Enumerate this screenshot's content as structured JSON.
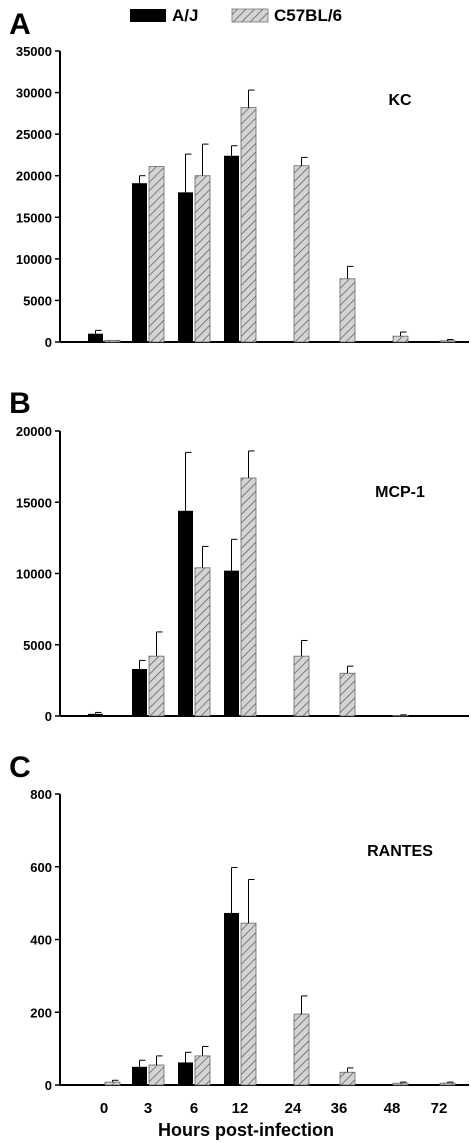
{
  "legend": [
    {
      "label": "A/J",
      "color": "#000000",
      "pattern": "solid"
    },
    {
      "label": "C57BL/6",
      "color": "#c8c8c8",
      "pattern": "diagonal-hatch"
    }
  ],
  "xlabel": "Hours post-infection",
  "chart_data": [
    {
      "type": "bar",
      "panel_letter": "A",
      "title": "KC",
      "categories": [
        "0",
        "3",
        "6",
        "12",
        "24",
        "36",
        "48",
        "72"
      ],
      "ylim": [
        0,
        35000
      ],
      "yticks": [
        "0",
        "5000",
        "10000",
        "15000",
        "20000",
        "25000",
        "30000",
        "35000"
      ],
      "show_x_tick_labels": false,
      "series": [
        {
          "name": "A/J",
          "values": [
            1000,
            19100,
            18000,
            22400,
            0,
            0,
            0,
            0
          ],
          "errors": [
            400,
            900,
            4600,
            1200,
            0,
            0,
            0,
            0
          ]
        },
        {
          "name": "C57BL/6",
          "values": [
            200,
            21100,
            20000,
            28200,
            21200,
            7600,
            700,
            150
          ],
          "errors": [
            0,
            0,
            3800,
            2100,
            1000,
            1500,
            500,
            150
          ]
        }
      ]
    },
    {
      "type": "bar",
      "panel_letter": "B",
      "title": "MCP-1",
      "categories": [
        "0",
        "3",
        "6",
        "12",
        "24",
        "36",
        "48",
        "72"
      ],
      "ylim": [
        0,
        20000
      ],
      "yticks": [
        "0",
        "5000",
        "10000",
        "15000",
        "20000"
      ],
      "show_x_tick_labels": false,
      "series": [
        {
          "name": "A/J",
          "values": [
            150,
            3300,
            14400,
            10200,
            0,
            0,
            0,
            0
          ],
          "errors": [
            100,
            600,
            4100,
            2200,
            0,
            0,
            0,
            0
          ]
        },
        {
          "name": "C57BL/6",
          "values": [
            0,
            4200,
            10400,
            16700,
            4200,
            3000,
            40,
            0
          ],
          "errors": [
            0,
            1700,
            1500,
            1900,
            1100,
            500,
            40,
            0
          ]
        }
      ]
    },
    {
      "type": "bar",
      "panel_letter": "C",
      "title": "RANTES",
      "categories": [
        "0",
        "3",
        "6",
        "12",
        "24",
        "36",
        "48",
        "72"
      ],
      "ylim": [
        0,
        800
      ],
      "yticks": [
        "0",
        "200",
        "400",
        "600",
        "800"
      ],
      "show_x_tick_labels": true,
      "series": [
        {
          "name": "A/J",
          "values": [
            2,
            50,
            62,
            473,
            0,
            0,
            0,
            0
          ],
          "errors": [
            0,
            18,
            28,
            125,
            0,
            0,
            0,
            0
          ]
        },
        {
          "name": "C57BL/6",
          "values": [
            8,
            55,
            80,
            445,
            195,
            35,
            5,
            5
          ],
          "errors": [
            5,
            25,
            26,
            120,
            50,
            12,
            3,
            3
          ]
        }
      ]
    }
  ]
}
